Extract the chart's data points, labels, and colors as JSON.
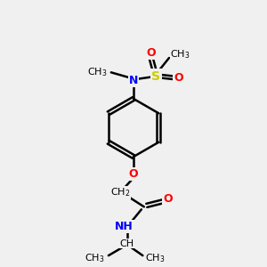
{
  "background_color": "#f0f0f0",
  "bond_color": "#000000",
  "atom_colors": {
    "O": "#ff0000",
    "N": "#0000ff",
    "S": "#cccc00",
    "C": "#000000",
    "H": "#888888"
  },
  "figsize": [
    3.0,
    3.0
  ],
  "dpi": 100
}
